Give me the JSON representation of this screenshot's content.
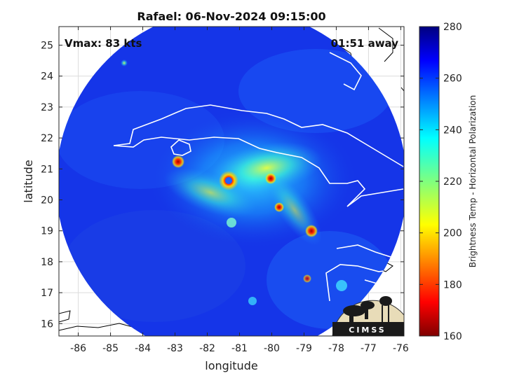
{
  "title": "Rafael: 06-Nov-2024 09:15:00",
  "vmax_text": "Vmax: 83 kts",
  "time_away_text": "01:51 away",
  "map": {
    "lon_range": [
      -86.6,
      -75.9
    ],
    "lat_range": [
      15.6,
      25.6
    ],
    "xlabel": "longitude",
    "ylabel": "latitude",
    "lon_ticks": [
      -86,
      -85,
      -84,
      -83,
      -82,
      -81,
      -80,
      -79,
      -78,
      -77,
      -76
    ],
    "lat_ticks": [
      16,
      17,
      18,
      19,
      20,
      21,
      22,
      23,
      24,
      25
    ],
    "grid": true,
    "storm_center": {
      "lon": -81.5,
      "lat": 20.8
    },
    "colors": {
      "background_field": "#1535e8",
      "swath_edge": "#0f27c8",
      "coastline": "#ffffff",
      "outside_coastline": "#000000"
    }
  },
  "colorbar": {
    "label": "Brightness Temp - Horizontal Polarization",
    "min": 160,
    "max": 280,
    "ticks": [
      160,
      180,
      200,
      220,
      240,
      260,
      280
    ],
    "colormap": "jet"
  },
  "logo": {
    "text": "CIMSS"
  }
}
